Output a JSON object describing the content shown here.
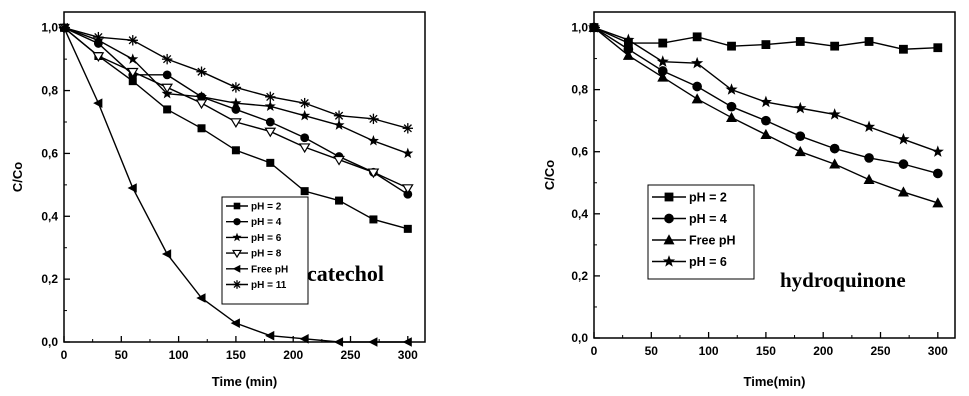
{
  "chart_data": [
    {
      "type": "line",
      "xlabel": "Time (min)",
      "ylabel": "C/Co",
      "xlim": [
        0,
        315
      ],
      "ylim": [
        0,
        1.05
      ],
      "xticks": [
        "0",
        "50",
        "100",
        "150",
        "200",
        "250",
        "300"
      ],
      "yticks": [
        "0,0",
        "0,2",
        "0,4",
        "0,6",
        "0,8",
        "1,0"
      ],
      "annotation": "catechol",
      "legend_position": "lower-right",
      "x": [
        0,
        30,
        60,
        90,
        120,
        150,
        180,
        210,
        240,
        270,
        300
      ],
      "series": [
        {
          "name": "pH = 2",
          "marker": "square",
          "values": [
            1.0,
            0.91,
            0.83,
            0.74,
            0.68,
            0.61,
            0.57,
            0.48,
            0.45,
            0.39,
            0.36
          ]
        },
        {
          "name": "pH = 4",
          "marker": "circle",
          "values": [
            1.0,
            0.95,
            0.85,
            0.85,
            0.78,
            0.74,
            0.7,
            0.65,
            0.59,
            0.54,
            0.47
          ]
        },
        {
          "name": "pH = 6",
          "marker": "star",
          "values": [
            1.0,
            0.96,
            0.9,
            0.79,
            0.78,
            0.76,
            0.75,
            0.72,
            0.69,
            0.64,
            0.6
          ]
        },
        {
          "name": "pH = 8",
          "marker": "triangle-down-open",
          "values": [
            1.0,
            0.91,
            0.86,
            0.81,
            0.76,
            0.7,
            0.67,
            0.62,
            0.58,
            0.54,
            0.49
          ]
        },
        {
          "name": "Free pH",
          "marker": "triangle-left",
          "values": [
            1.0,
            0.76,
            0.49,
            0.28,
            0.14,
            0.06,
            0.02,
            0.01,
            0.0,
            0.0,
            0.0
          ]
        },
        {
          "name": "pH = 11",
          "marker": "asterisk",
          "values": [
            1.0,
            0.97,
            0.96,
            0.9,
            0.86,
            0.81,
            0.78,
            0.76,
            0.72,
            0.71,
            0.68
          ]
        }
      ]
    },
    {
      "type": "line",
      "xlabel": "Time(min)",
      "ylabel": "C/Co",
      "xlim": [
        0,
        315
      ],
      "ylim": [
        0,
        1.05
      ],
      "xticks": [
        "0",
        "50",
        "100",
        "150",
        "200",
        "250",
        "300"
      ],
      "yticks": [
        "0,0",
        "0,2",
        "0,4",
        "0,6",
        "0,8",
        "1,0"
      ],
      "annotation": "hydroquinone",
      "legend_position": "center-left",
      "x": [
        0,
        30,
        60,
        90,
        120,
        150,
        180,
        210,
        240,
        270,
        300
      ],
      "series": [
        {
          "name": "pH = 2",
          "marker": "square",
          "values": [
            1.0,
            0.95,
            0.95,
            0.97,
            0.94,
            0.945,
            0.955,
            0.94,
            0.955,
            0.93,
            0.935
          ]
        },
        {
          "name": "pH = 4",
          "marker": "circle",
          "values": [
            1.0,
            0.93,
            0.86,
            0.81,
            0.745,
            0.7,
            0.65,
            0.61,
            0.58,
            0.56,
            0.53
          ]
        },
        {
          "name": "Free pH",
          "marker": "triangle-up",
          "values": [
            1.0,
            0.91,
            0.84,
            0.77,
            0.71,
            0.655,
            0.6,
            0.56,
            0.51,
            0.47,
            0.435
          ]
        },
        {
          "name": "pH = 6",
          "marker": "star",
          "values": [
            1.0,
            0.96,
            0.89,
            0.885,
            0.8,
            0.76,
            0.74,
            0.72,
            0.68,
            0.64,
            0.6
          ]
        }
      ]
    }
  ]
}
